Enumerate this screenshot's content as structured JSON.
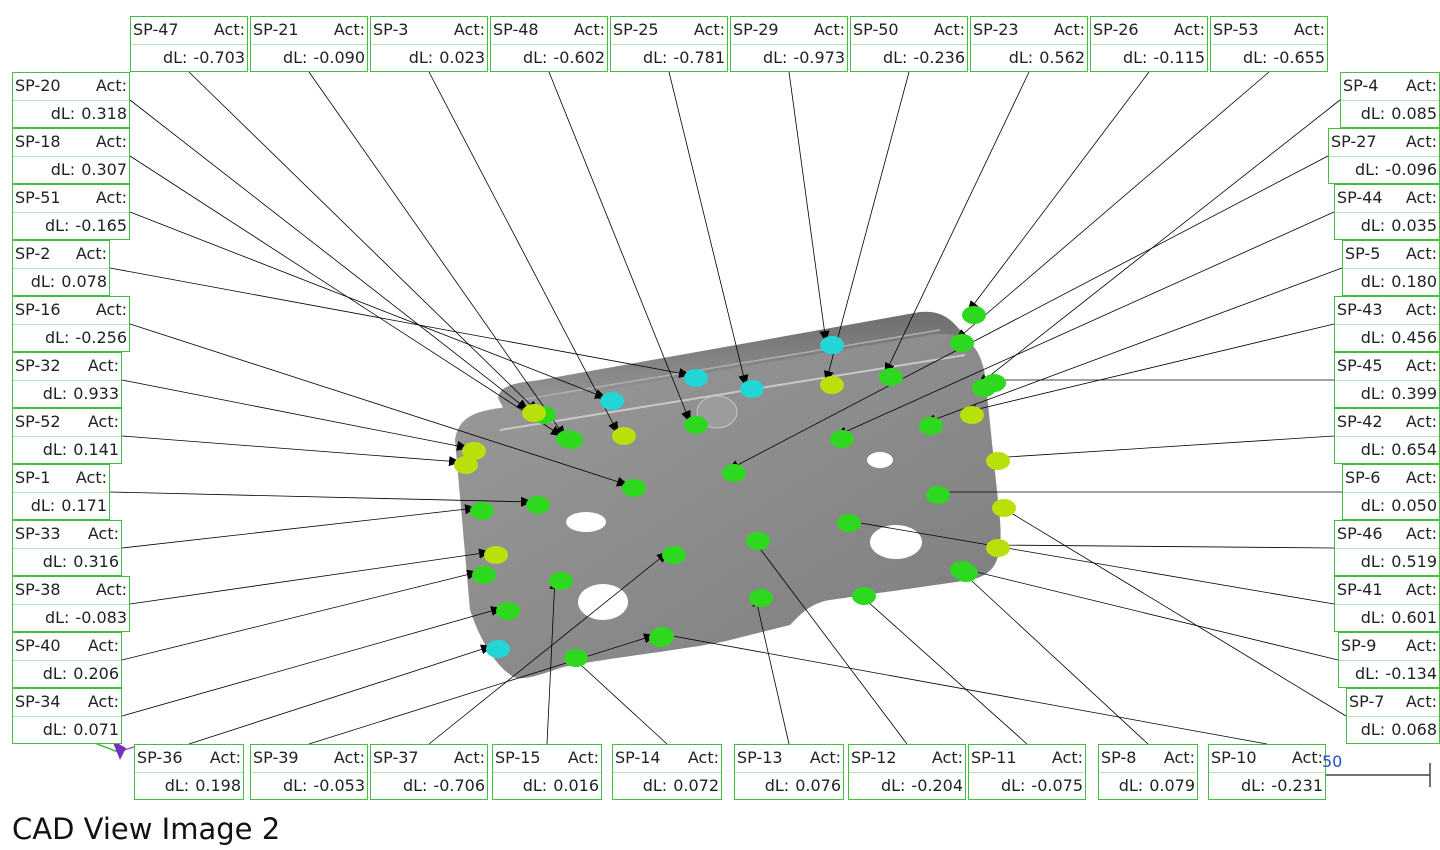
{
  "caption": "CAD View Image 2",
  "scale_label": "50",
  "labels": {
    "act": "Act:",
    "dl": "dL:"
  },
  "colors": {
    "callout_border": "#3fbf3f",
    "part_gray": "#8d8d8d",
    "cyan_point": "#22d6d6",
    "green_point": "#2ed81e",
    "yellow_green_point": "#b8e00a",
    "yellow_point": "#e6e600",
    "leader": "#000000"
  },
  "points": [
    {
      "id": "SP-47",
      "dl": "-0.703"
    },
    {
      "id": "SP-21",
      "dl": "-0.090"
    },
    {
      "id": "SP-3",
      "dl": "0.023"
    },
    {
      "id": "SP-48",
      "dl": "-0.602"
    },
    {
      "id": "SP-25",
      "dl": "-0.781"
    },
    {
      "id": "SP-29",
      "dl": "-0.973"
    },
    {
      "id": "SP-50",
      "dl": "-0.236"
    },
    {
      "id": "SP-23",
      "dl": "0.562"
    },
    {
      "id": "SP-26",
      "dl": "-0.115"
    },
    {
      "id": "SP-53",
      "dl": "-0.655"
    },
    {
      "id": "SP-20",
      "dl": "0.318"
    },
    {
      "id": "SP-18",
      "dl": "0.307"
    },
    {
      "id": "SP-51",
      "dl": "-0.165"
    },
    {
      "id": "SP-2",
      "dl": "0.078"
    },
    {
      "id": "SP-16",
      "dl": "-0.256"
    },
    {
      "id": "SP-32",
      "dl": "0.933"
    },
    {
      "id": "SP-52",
      "dl": "0.141"
    },
    {
      "id": "SP-1",
      "dl": "0.171"
    },
    {
      "id": "SP-33",
      "dl": "0.316"
    },
    {
      "id": "SP-38",
      "dl": "-0.083"
    },
    {
      "id": "SP-40",
      "dl": "0.206"
    },
    {
      "id": "SP-34",
      "dl": "0.071"
    },
    {
      "id": "SP-4",
      "dl": "0.085"
    },
    {
      "id": "SP-27",
      "dl": "-0.096"
    },
    {
      "id": "SP-44",
      "dl": "0.035"
    },
    {
      "id": "SP-5",
      "dl": "0.180"
    },
    {
      "id": "SP-43",
      "dl": "0.456"
    },
    {
      "id": "SP-45",
      "dl": "0.399"
    },
    {
      "id": "SP-42",
      "dl": "0.654"
    },
    {
      "id": "SP-6",
      "dl": "0.050"
    },
    {
      "id": "SP-46",
      "dl": "0.519"
    },
    {
      "id": "SP-41",
      "dl": "0.601"
    },
    {
      "id": "SP-9",
      "dl": "-0.134"
    },
    {
      "id": "SP-7",
      "dl": "0.068"
    },
    {
      "id": "SP-36",
      "dl": "0.198"
    },
    {
      "id": "SP-39",
      "dl": "-0.053"
    },
    {
      "id": "SP-37",
      "dl": "-0.706"
    },
    {
      "id": "SP-15",
      "dl": "0.016"
    },
    {
      "id": "SP-14",
      "dl": "0.072"
    },
    {
      "id": "SP-13",
      "dl": "0.076"
    },
    {
      "id": "SP-12",
      "dl": "-0.204"
    },
    {
      "id": "SP-11",
      "dl": "-0.075"
    },
    {
      "id": "SP-8",
      "dl": "0.079"
    },
    {
      "id": "SP-10",
      "dl": "-0.231"
    }
  ]
}
